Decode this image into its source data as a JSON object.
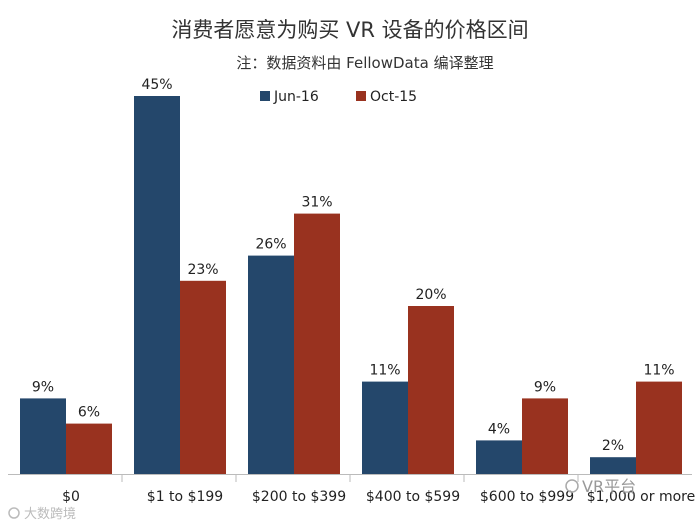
{
  "chart_data": {
    "type": "bar",
    "title": "消费者愿意为购买 VR 设备的价格区间",
    "subtitle": "注：数据资料由 FellowData 编译整理",
    "categories": [
      "$0",
      "$1 to $199",
      "$200 to $399",
      "$400 to $599",
      "$600 to $999",
      "$1,000 or more"
    ],
    "series": [
      {
        "name": "Jun-16",
        "color": "#24476b",
        "values": [
          9,
          45,
          26,
          11,
          4,
          2
        ],
        "labels": [
          "9%",
          "45%",
          "26%",
          "11%",
          "4%",
          "2%"
        ]
      },
      {
        "name": "Oct-15",
        "color": "#99321f",
        "values": [
          6,
          23,
          31,
          20,
          9,
          11
        ],
        "labels": [
          "6%",
          "23%",
          "31%",
          "20%",
          "9%",
          "11%"
        ]
      }
    ],
    "ylim": [
      0,
      45
    ],
    "legend": "top-center",
    "grid": false
  },
  "watermarks": {
    "left": "大数跨境",
    "right": "VR平台"
  }
}
